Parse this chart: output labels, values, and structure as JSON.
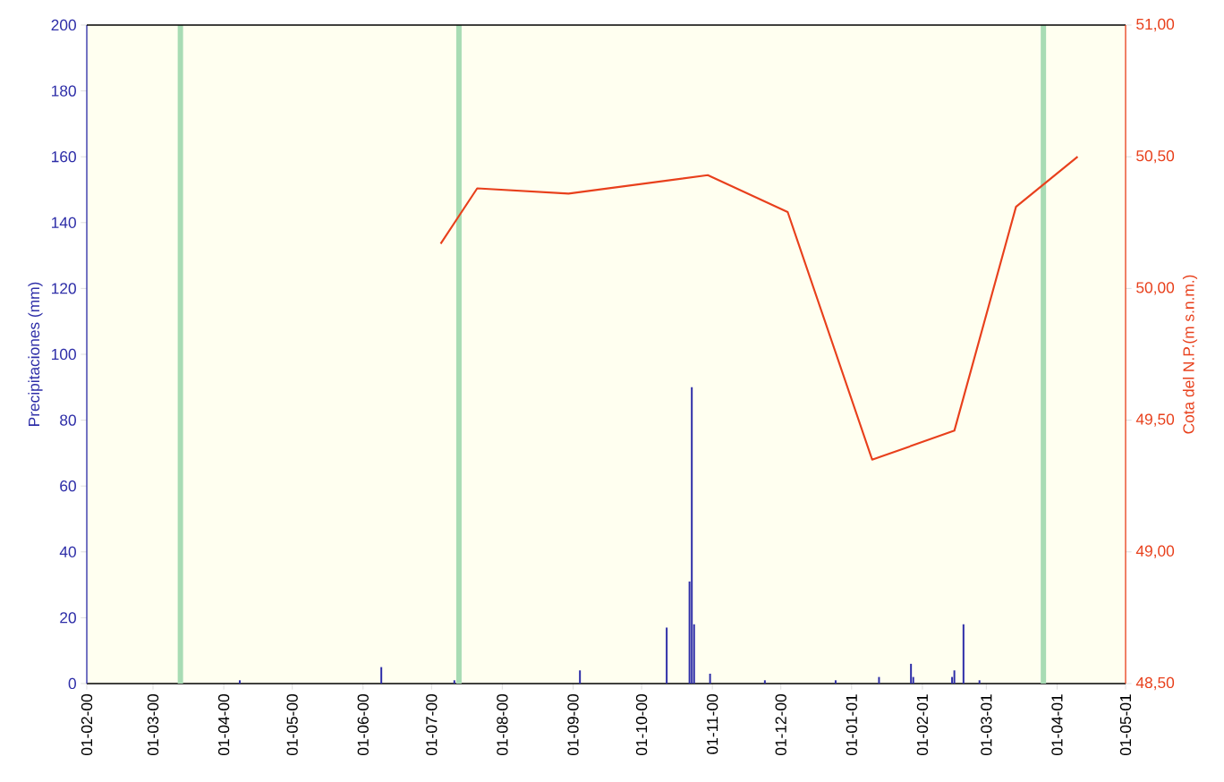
{
  "chart_data": {
    "type": "bar",
    "ylabel": "Precipitaciones (mm)",
    "y2label": "Cota del N.P.(m s.n.m.)",
    "xlim": [
      "2000-02-01",
      "2001-05-01"
    ],
    "xticks": [
      {
        "value": "2000-02-01",
        "label": "01-02-00"
      },
      {
        "value": "2000-03-01",
        "label": "01-03-00"
      },
      {
        "value": "2000-04-01",
        "label": "01-04-00"
      },
      {
        "value": "2000-05-01",
        "label": "01-05-00"
      },
      {
        "value": "2000-06-01",
        "label": "01-06-00"
      },
      {
        "value": "2000-07-01",
        "label": "01-07-00"
      },
      {
        "value": "2000-08-01",
        "label": "01-08-00"
      },
      {
        "value": "2000-09-01",
        "label": "01-09-00"
      },
      {
        "value": "2000-10-01",
        "label": "01-10-00"
      },
      {
        "value": "2000-11-01",
        "label": "01-11-00"
      },
      {
        "value": "2000-12-01",
        "label": "01-12-00"
      },
      {
        "value": "2001-01-01",
        "label": "01-01-01"
      },
      {
        "value": "2001-02-01",
        "label": "01-02-01"
      },
      {
        "value": "2001-03-01",
        "label": "01-03-01"
      },
      {
        "value": "2001-04-01",
        "label": "01-04-01"
      },
      {
        "value": "2001-05-01",
        "label": "01-05-01"
      }
    ],
    "ylim": [
      0,
      200
    ],
    "yticks": [
      0,
      20,
      40,
      60,
      80,
      100,
      120,
      140,
      160,
      180,
      200
    ],
    "y2lim": [
      48.5,
      51
    ],
    "y2ticks": [
      {
        "value": 48.5,
        "label": "48,50"
      },
      {
        "value": 49,
        "label": "49,00"
      },
      {
        "value": 49.5,
        "label": "49,50"
      },
      {
        "value": 50,
        "label": "50,00"
      },
      {
        "value": 50.5,
        "label": "50,50"
      },
      {
        "value": 51,
        "label": "51,00"
      }
    ],
    "series": [
      {
        "color": "#2e2ea8",
        "x": [
          "2000-04-08",
          "2000-06-09",
          "2000-07-11",
          "2000-09-04",
          "2000-10-12",
          "2000-10-22",
          "2000-10-23",
          "2000-10-24",
          "2000-10-31",
          "2000-11-24",
          "2000-12-25",
          "2001-01-13",
          "2001-01-27",
          "2001-01-28",
          "2001-02-14",
          "2001-02-15",
          "2001-02-19",
          "2001-02-26"
        ],
        "values": [
          1,
          5,
          1,
          4,
          17,
          31,
          90,
          18,
          3,
          1,
          1,
          2,
          6,
          2,
          2,
          4,
          18,
          1
        ]
      },
      {
        "type": "line",
        "axis": "y2",
        "color": "#e8401c",
        "x": [
          "2000-07-05",
          "2000-07-21",
          "2000-08-30",
          "2000-10-30",
          "2000-12-04",
          "2001-01-10",
          "2001-02-15",
          "2001-03-14",
          "2001-04-10"
        ],
        "values": [
          50.17,
          50.38,
          50.36,
          50.43,
          50.29,
          49.35,
          49.46,
          50.31,
          50.5
        ]
      }
    ],
    "ref_lines": [
      {
        "axis": "x",
        "value": "2000-03-13",
        "color": "#a8dcb4"
      },
      {
        "axis": "x",
        "value": "2000-07-13",
        "color": "#a8dcb4"
      },
      {
        "axis": "x",
        "value": "2001-03-26",
        "color": "#a8dcb4"
      }
    ]
  }
}
